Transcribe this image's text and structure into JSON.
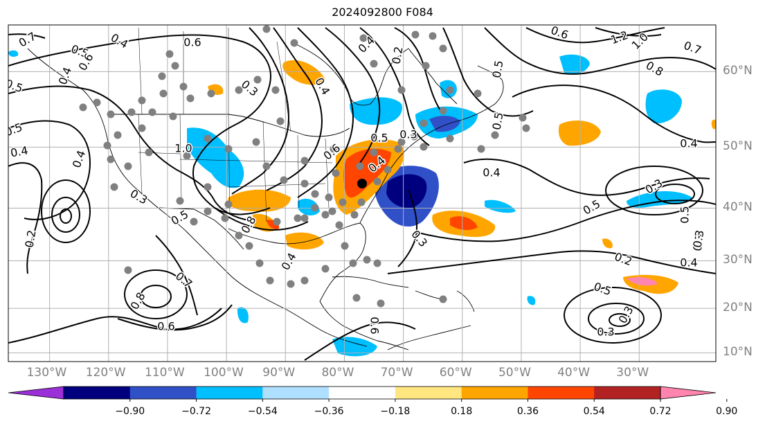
{
  "title": "2024092800 F084",
  "map": {
    "lon_range": [
      -137,
      -17
    ],
    "lat_range": [
      8,
      65
    ],
    "lon_labels": [
      "130°W",
      "120°W",
      "110°W",
      "100°W",
      "90°W",
      "80°W",
      "70°W",
      "60°W",
      "50°W",
      "40°W",
      "30°W"
    ],
    "lon_values": [
      -130,
      -120,
      -110,
      -100,
      -90,
      -80,
      -70,
      -60,
      -50,
      -40,
      -30
    ],
    "lat_labels": [
      "60°N",
      "50°N",
      "40°N",
      "30°N",
      "20°N",
      "10°N"
    ],
    "lat_values": [
      60,
      50,
      40,
      30,
      20,
      10
    ],
    "grid_color": "#b0b0b0"
  },
  "colorbar": {
    "ticks": [
      "−0.90",
      "−0.72",
      "−0.54",
      "−0.36",
      "−0.18",
      "0.18",
      "0.36",
      "0.54",
      "0.72",
      "0.90"
    ],
    "colors": [
      "#9b30d9",
      "#00007f",
      "#3050c8",
      "#00bfff",
      "#b0e0ff",
      "#ffffff",
      "#ffe680",
      "#ffa500",
      "#ff4500",
      "#b22222",
      "#ff85b0"
    ]
  },
  "contour_labels": [
    "0.7",
    "0.4",
    "0.6",
    "0.5",
    "0.6",
    "0.3",
    "0.8",
    "1.2",
    "1.0",
    "0.7",
    "0.6",
    "0.5",
    "0.4",
    "0.4",
    "0.3",
    "0.7",
    "0.8",
    "0.6",
    "0.4",
    "0.3",
    "0.5",
    "0.3",
    "0.4",
    "0.5",
    "0.2",
    "0.4",
    "0.5",
    "0.3",
    "0.3",
    "0.3",
    "0.4",
    "0.4",
    "0.2",
    "0.4",
    "0.5",
    "0.3",
    "0.4",
    "0.5",
    "0.6",
    "1.0",
    "0.5",
    "0.6",
    "0.8",
    "0.2",
    "0.5",
    "0.3",
    "0.5",
    "0.4"
  ]
}
